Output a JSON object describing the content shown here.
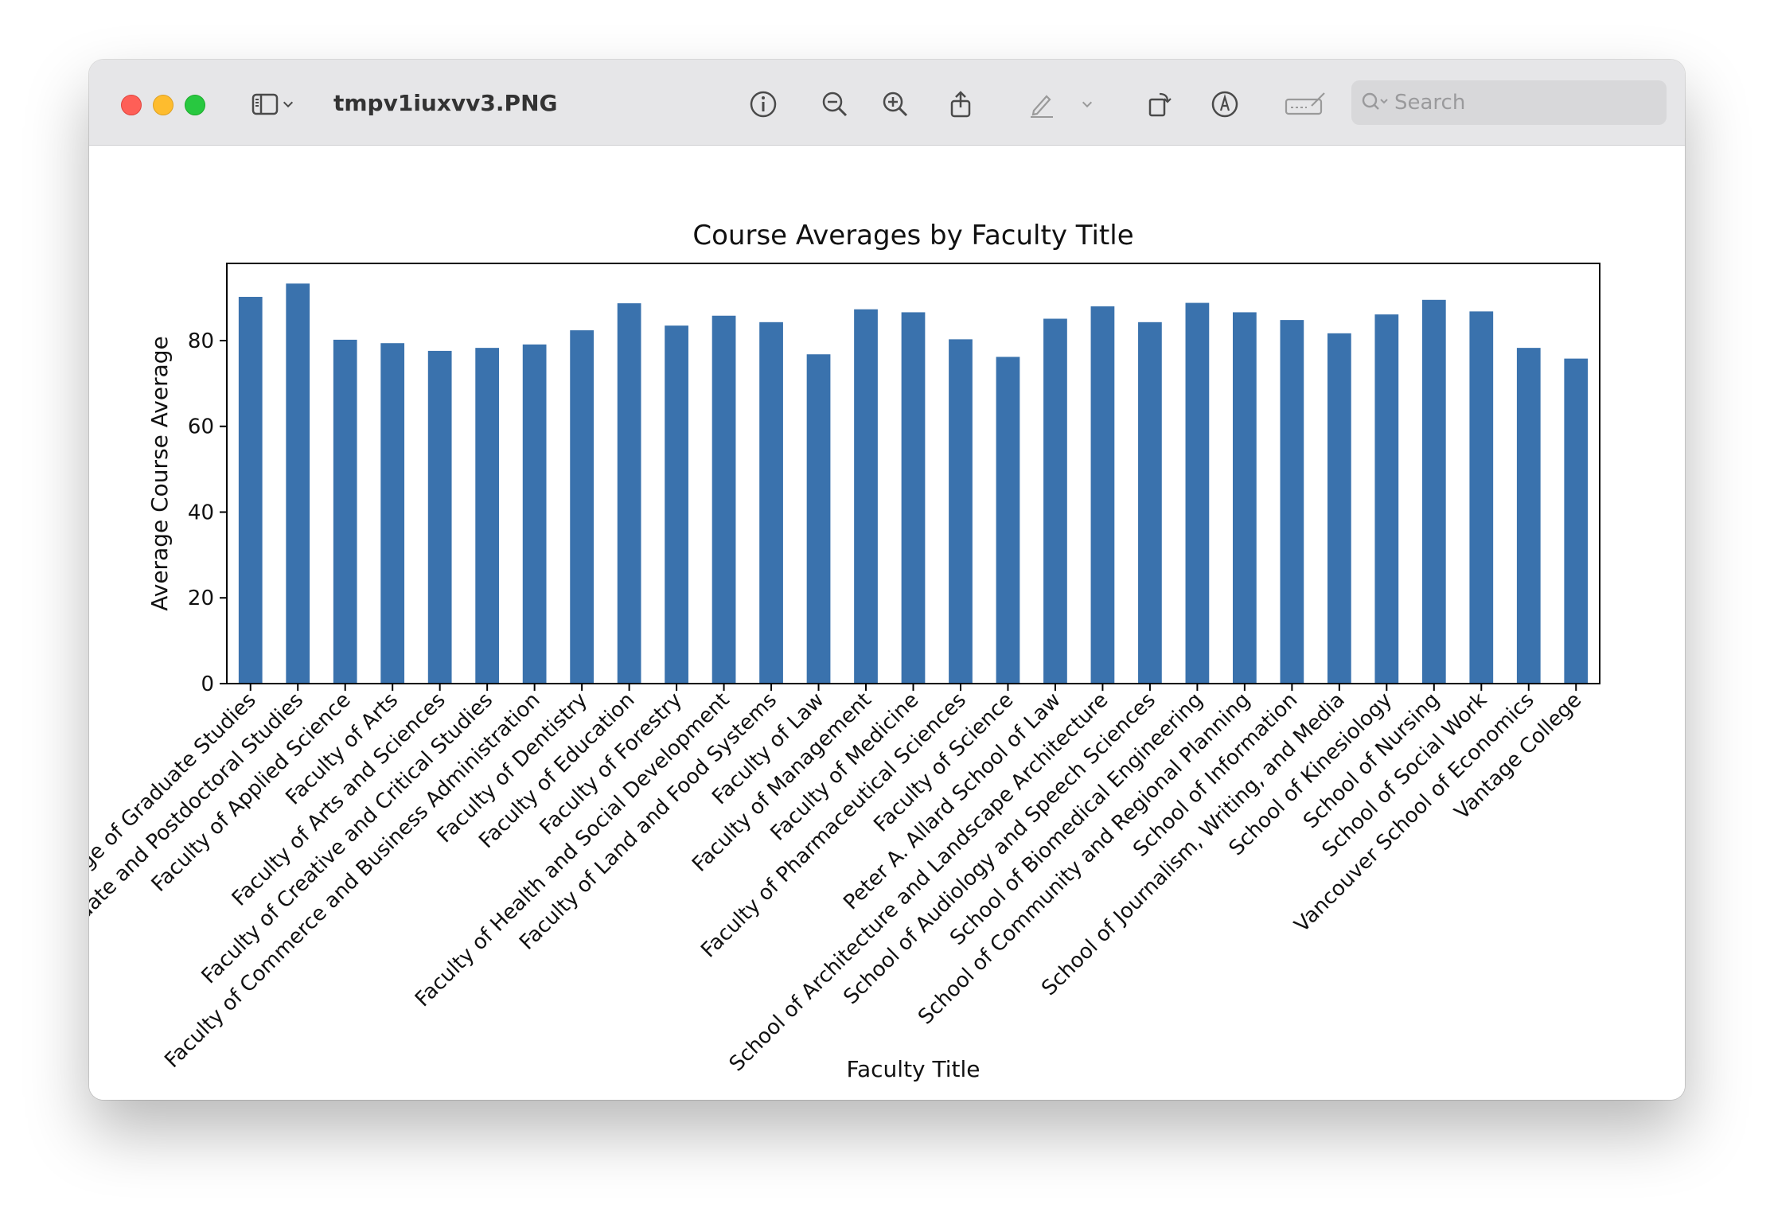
{
  "window": {
    "title": "tmpv1iuxvv3.PNG",
    "search_placeholder": "Search"
  },
  "toolbar_icons": [
    "sidebar-icon",
    "chevron-down-icon",
    "info-icon",
    "zoom-out-icon",
    "zoom-in-icon",
    "share-icon",
    "markup-pen-icon",
    "chevron-down-icon",
    "rotate-icon",
    "markup-circle-icon",
    "signature-icon",
    "search-icon"
  ],
  "colors": {
    "bar": "#3a72ad"
  },
  "chart_data": {
    "type": "bar",
    "title": "Course Averages by Faculty Title",
    "xlabel": "Faculty Title",
    "ylabel": "Average Course Average",
    "ylim": [
      0,
      98
    ],
    "yticks": [
      0,
      20,
      40,
      60,
      80
    ],
    "categories": [
      "College of Graduate Studies",
      "Faculty Graduate and Postdoctoral Studies",
      "Faculty of Applied Science",
      "Faculty of Arts",
      "Faculty of Arts and Sciences",
      "Faculty of Creative and Critical Studies",
      "Faculty of Commerce and Business Administration",
      "Faculty of Dentistry",
      "Faculty of Education",
      "Faculty of Forestry",
      "Faculty of Health and Social Development",
      "Faculty of Land and Food Systems",
      "Faculty of Law",
      "Faculty of Management",
      "Faculty of Medicine",
      "Faculty of Pharmaceutical Sciences",
      "Faculty of Science",
      "Peter A. Allard School of Law",
      "School of Architecture and Landscape Architecture",
      "School of Audiology and Speech Sciences",
      "School of Biomedical Engineering",
      "School of Community and Regional Planning",
      "School of Information",
      "School of Journalism, Writing, and Media",
      "School of Kinesiology",
      "School of Nursing",
      "School of Social Work",
      "Vancouver School of Economics",
      "Vantage College"
    ],
    "values": [
      90.2,
      93.3,
      80.2,
      79.4,
      77.6,
      78.3,
      79.1,
      82.4,
      88.7,
      83.5,
      85.8,
      84.3,
      76.8,
      87.3,
      86.6,
      80.3,
      76.2,
      85.1,
      88.0,
      84.3,
      88.8,
      86.6,
      84.8,
      81.7,
      86.1,
      89.5,
      86.8,
      78.3,
      75.8
    ],
    "grid": false,
    "legend": "none"
  }
}
